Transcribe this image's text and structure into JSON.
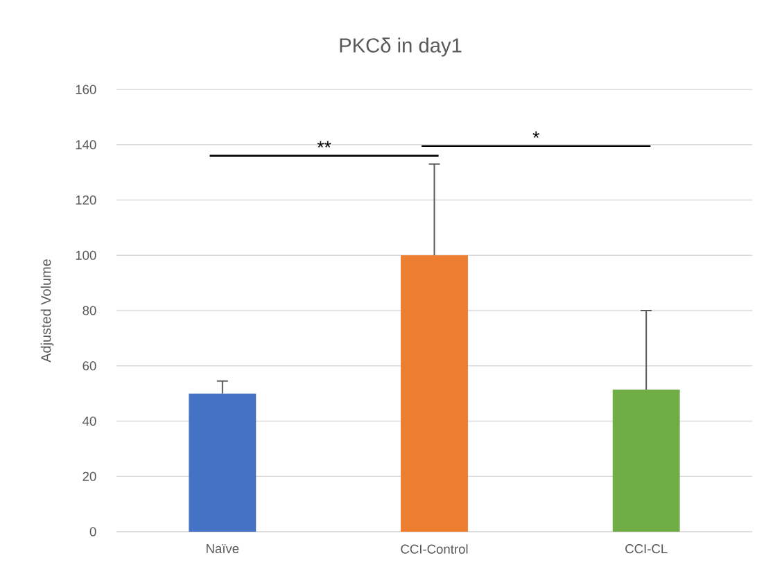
{
  "chart_data": {
    "type": "bar",
    "title": "PKCδ in day1",
    "ylabel": "Adjusted Volume",
    "categories": [
      "Naïve",
      "CCI-Control",
      "CCI-CL"
    ],
    "values": [
      50,
      100,
      51.4
    ],
    "colors": [
      "#4472c4",
      "#ed7d31",
      "#70ad47"
    ],
    "errors": [
      [
        50,
        54.5
      ],
      [
        100,
        133
      ],
      [
        51.4,
        80
      ]
    ],
    "ylim": [
      0,
      160
    ],
    "yticks": [
      0,
      20,
      40,
      60,
      80,
      100,
      120,
      140,
      160
    ],
    "grid": "y",
    "annotations": [
      "**",
      "*"
    ]
  }
}
